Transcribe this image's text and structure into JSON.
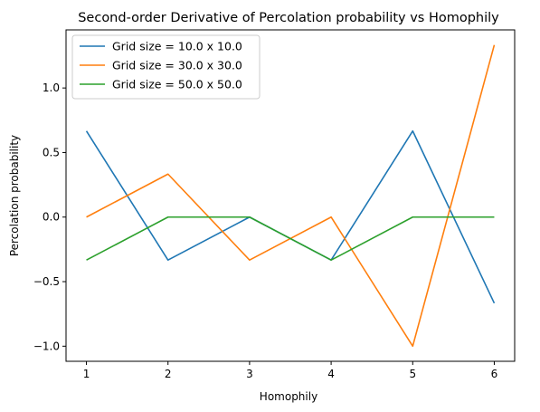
{
  "chart_data": {
    "type": "line",
    "title": "Second-order Derivative of Percolation probability vs Homophily",
    "xlabel": "Homophily",
    "ylabel": "Percolation probability",
    "x": [
      1,
      2,
      3,
      4,
      5,
      6
    ],
    "xticks": [
      1,
      2,
      3,
      4,
      5,
      6
    ],
    "yticks": [
      -1.0,
      -0.5,
      0.0,
      0.5,
      1.0
    ],
    "ytick_labels": [
      "−1.0",
      "−0.5",
      "0.0",
      "0.5",
      "1.0"
    ],
    "xlim": [
      0.75,
      6.25
    ],
    "ylim": [
      -1.117,
      1.45
    ],
    "grid": false,
    "legend_position": "upper-left",
    "series": [
      {
        "name": "Grid size = 10.0 x 10.0",
        "color": "#1f77b4",
        "values": [
          0.667,
          -0.333,
          0.0,
          -0.333,
          0.667,
          -0.667
        ]
      },
      {
        "name": "Grid size = 30.0 x 30.0",
        "color": "#ff7f0e",
        "values": [
          0.0,
          0.333,
          -0.333,
          0.0,
          -1.0,
          1.333
        ]
      },
      {
        "name": "Grid size = 50.0 x 50.0",
        "color": "#2ca02c",
        "values": [
          -0.333,
          0.0,
          0.0,
          -0.333,
          0.0,
          0.0
        ]
      }
    ]
  }
}
